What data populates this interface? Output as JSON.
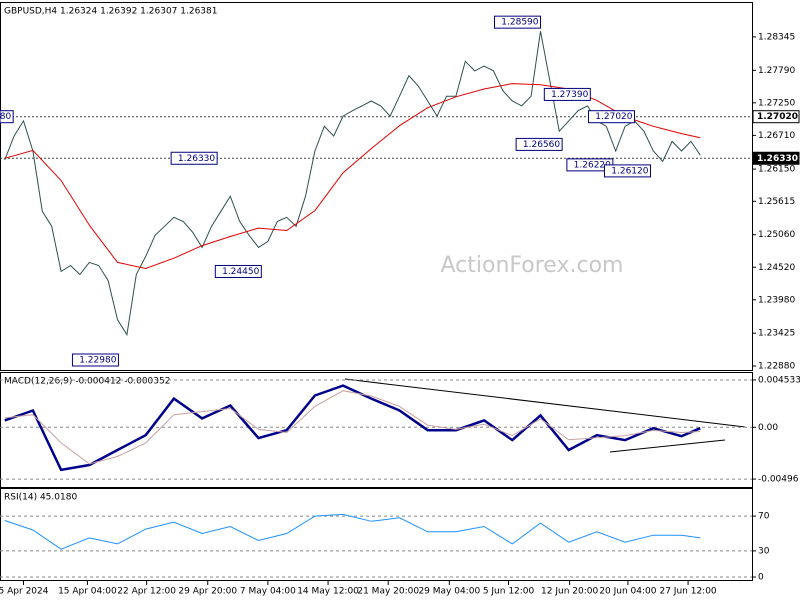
{
  "chart_data": [
    {
      "type": "line",
      "title": "GBPUSD,H4  1.26324 1.26392 1.26307 1.26381",
      "watermark": "ActionForex.com",
      "xlim": [
        -0.5,
        79.5
      ],
      "xticks": [
        {
          "value": 2,
          "label": "5 Apr 2024"
        },
        {
          "value": 8.8,
          "label": "15 Apr 04:00"
        },
        {
          "value": 15.1,
          "label": "22 Apr 12:00"
        },
        {
          "value": 21.6,
          "label": "29 Apr 20:00"
        },
        {
          "value": 28,
          "label": "7 May 04:00"
        },
        {
          "value": 34.4,
          "label": "14 May 12:00"
        },
        {
          "value": 40.8,
          "label": "21 May 20:00"
        },
        {
          "value": 47.3,
          "label": "29 May 04:00"
        },
        {
          "value": 53.6,
          "label": "5 Jun 12:00"
        },
        {
          "value": 60.1,
          "label": "12 Jun 20:00"
        },
        {
          "value": 66.3,
          "label": "20 Jun 04:00"
        },
        {
          "value": 72.7,
          "label": "27 Jun 12:00"
        }
      ],
      "ylim": [
        1.22814,
        1.28908
      ],
      "yticks": [
        {
          "value": 1.28345,
          "label": "1.28345"
        },
        {
          "value": 1.2779,
          "label": "1.27790"
        },
        {
          "value": 1.2725,
          "label": "1.27250"
        },
        {
          "value": 1.2671,
          "label": "1.26710"
        },
        {
          "value": 1.2615,
          "label": "1.26150"
        },
        {
          "value": 1.25615,
          "label": "1.25615"
        },
        {
          "value": 1.2506,
          "label": "1.25060"
        },
        {
          "value": 1.2452,
          "label": "1.24520"
        },
        {
          "value": 1.2398,
          "label": "1.23980"
        },
        {
          "value": 1.23425,
          "label": "1.23425"
        },
        {
          "value": 1.2288,
          "label": "1.22880"
        }
      ],
      "series": [
        {
          "color": "#2f4f4f",
          "values": [
            1.263,
            1.267,
            1.2695,
            1.2645,
            1.2545,
            1.252,
            1.2445,
            1.2455,
            1.244,
            1.246,
            1.2455,
            1.243,
            1.2365,
            1.234,
            1.244,
            1.247,
            1.2505,
            1.252,
            1.2535,
            1.2528,
            1.251,
            1.2485,
            1.252,
            1.2545,
            1.257,
            1.2528,
            1.2505,
            1.2485,
            1.2495,
            1.2528,
            1.2535,
            1.252,
            1.257,
            1.2645,
            1.2686,
            1.267,
            1.2703,
            1.2712,
            1.272,
            1.2728,
            1.272,
            1.2703,
            1.2736,
            1.277,
            1.2753,
            1.2728,
            1.2703,
            1.2736,
            1.2736,
            1.2794,
            1.2778,
            1.2786,
            1.2778,
            1.2745,
            1.2728,
            1.272,
            1.2736,
            1.2844,
            1.2761,
            1.2678,
            1.2695,
            1.2712,
            1.272,
            1.2695,
            1.2686,
            1.2645,
            1.2686,
            1.2695,
            1.2678,
            1.2645,
            1.2628,
            1.2661,
            1.2645,
            1.2661,
            1.2638
          ]
        },
        {
          "color": "#e00000",
          "x": [
            0,
            3,
            6,
            9,
            12,
            15,
            18,
            21,
            24,
            27,
            30,
            33,
            36,
            39,
            42,
            45,
            48,
            51,
            54,
            57,
            60,
            63,
            66,
            69,
            72,
            74
          ],
          "values": [
            1.2633,
            1.2646,
            1.2596,
            1.2522,
            1.246,
            1.245,
            1.2467,
            1.2488,
            1.2503,
            1.2517,
            1.2513,
            1.2546,
            1.2609,
            1.2649,
            1.2687,
            1.2717,
            1.2735,
            1.2748,
            1.2757,
            1.2755,
            1.2748,
            1.2729,
            1.2702,
            1.2686,
            1.2674,
            1.2667
          ]
        }
      ],
      "annotations": [
        {
          "label": "1.28590",
          "value": 1.2859,
          "x": 57
        },
        {
          "label": "1.27390",
          "value": 1.2739,
          "x": 62.3
        },
        {
          "label": "1.27020",
          "value": 1.2702,
          "x": 67
        },
        {
          "label": "1.26560",
          "value": 1.2656,
          "x": 59.3
        },
        {
          "label": "1.26220",
          "value": 1.2622,
          "x": 64.7
        },
        {
          "label": "1.26120",
          "value": 1.2612,
          "x": 68.7
        },
        {
          "label": "1.26330",
          "value": 1.2633,
          "x": 22.6
        },
        {
          "label": "1.24450",
          "value": 1.2445,
          "x": 27.3
        },
        {
          "label": "1.22980",
          "value": 1.2298,
          "x": 12.1
        },
        {
          "label": "80",
          "value": 1.2702,
          "x": 0.9
        }
      ],
      "price_labels": [
        {
          "value": 1.2702,
          "label": "1.27020"
        },
        {
          "value": 1.2633,
          "label": "1.26330"
        }
      ]
    },
    {
      "type": "line",
      "title": "MACD(12,26,9) -0.000412 -0.000352",
      "ylim": [
        -0.005719,
        0.005198
      ],
      "yticks": [
        0.004533,
        {
          "value": 0,
          "label": "0.00"
        },
        -0.00496
      ],
      "series": [
        {
          "color": "#00008b",
          "x": [
            0,
            3,
            6,
            9,
            12,
            15,
            18,
            21,
            24,
            27,
            30,
            33,
            36,
            39,
            42,
            45,
            48,
            51,
            54,
            57,
            60,
            63,
            66,
            69,
            72,
            74
          ],
          "values": [
            0.00066,
            0.00161,
            -0.00408,
            -0.00361,
            -0.00218,
            -0.00076,
            0.00275,
            0.00085,
            0.00209,
            -0.00104,
            -0.00028,
            0.00304,
            0.00399,
            0.00275,
            0.00161,
            -0.00028,
            -0.00028,
            0.00066,
            -0.00123,
            0.00114,
            -0.00218,
            -0.00076,
            -0.00123,
            -9e-05,
            -0.00085,
            -9e-05
          ]
        },
        {
          "color": "#c8a0a0",
          "x": [
            0,
            3,
            6,
            9,
            12,
            15,
            18,
            21,
            24,
            27,
            30,
            33,
            36,
            39,
            42,
            45,
            48,
            51,
            54,
            57,
            60,
            63,
            66,
            69,
            72,
            74
          ],
          "values": [
            0.0009,
            0.0012,
            -0.0015,
            -0.0035,
            -0.0028,
            -0.0015,
            0.0012,
            0.0015,
            0.0018,
            -0.0002,
            -0.0005,
            0.002,
            0.0035,
            0.003,
            0.002,
            0.0002,
            -0.0002,
            0.0003,
            -0.0008,
            0.0008,
            -0.0012,
            -0.001,
            -0.0008,
            -0.0003,
            -0.0005,
            -0.0004
          ]
        }
      ]
    },
    {
      "type": "line",
      "title": "RSI(14) 45.0180",
      "ylim": [
        0,
        100
      ],
      "yticks": [
        70,
        30,
        0
      ],
      "series": [
        {
          "color": "#1e90ff",
          "x": [
            0,
            3,
            6,
            9,
            12,
            15,
            18,
            21,
            24,
            27,
            30,
            33,
            36,
            39,
            42,
            45,
            48,
            51,
            54,
            57,
            60,
            63,
            66,
            69,
            72,
            74
          ],
          "values": [
            65,
            54,
            32,
            45,
            38,
            55,
            63,
            50,
            58,
            42,
            50,
            70,
            72,
            64,
            68,
            52,
            52,
            58,
            38,
            62,
            40,
            52,
            40,
            48,
            48,
            45
          ]
        }
      ]
    }
  ]
}
